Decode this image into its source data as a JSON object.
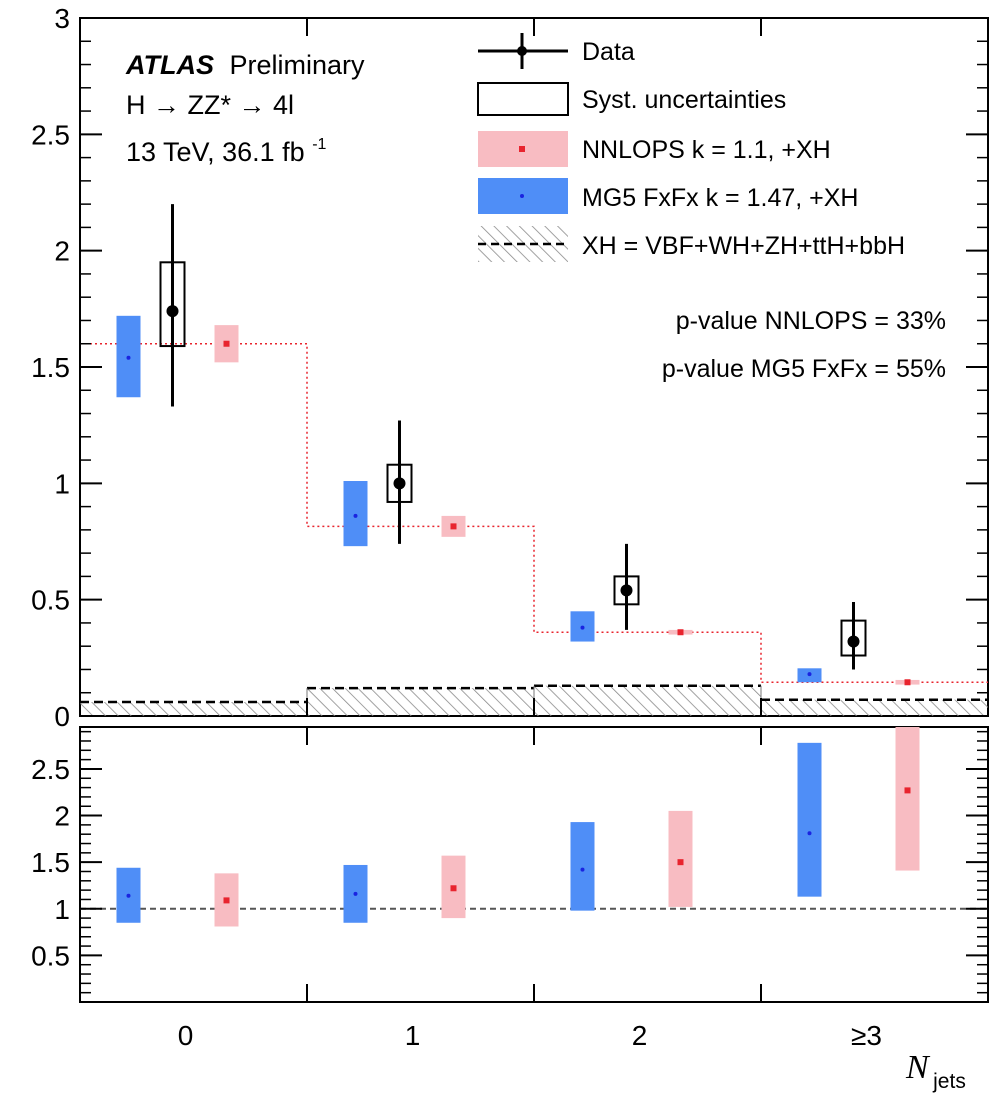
{
  "header": {
    "atlas": "ATLAS",
    "status": "Preliminary",
    "process": "H → ZZ* → 4l",
    "energy": "13 TeV, 36.1 fb",
    "lumi_exp": "-1"
  },
  "legend": {
    "data": "Data",
    "syst": "Syst. uncertainties",
    "nnlops": "NNLOPS k = 1.1, +XH",
    "mg5": "MG5 FxFx k = 1.47, +XH",
    "xh": "XH = VBF+WH+ZH+ttH+bbH"
  },
  "pvalues": {
    "nnlops": "p-value NNLOPS = 33%",
    "mg5": "p-value MG5 FxFx = 55%"
  },
  "colors": {
    "data": "#000000",
    "nnlops_fill": "#f8bcc2",
    "nnlops_marker": "#e8242e",
    "mg5_fill": "#4f8ef7",
    "mg5_marker": "#1a24e0",
    "xh_line": "#000000"
  },
  "chart_data": [
    {
      "type": "bar",
      "panel": "main",
      "categories": [
        "0",
        "1",
        "2",
        "≥3"
      ],
      "ylim": [
        0,
        3
      ],
      "y_ticks": [
        "0",
        "0.5",
        "1",
        "1.5",
        "2",
        "2.5",
        "3"
      ],
      "series": [
        {
          "name": "Data",
          "values": [
            1.74,
            1.0,
            0.54,
            0.32
          ],
          "total_err_low": [
            1.33,
            0.74,
            0.37,
            0.2
          ],
          "total_err_high": [
            2.2,
            1.27,
            0.74,
            0.49
          ],
          "syst_low": [
            1.59,
            0.92,
            0.48,
            0.26
          ],
          "syst_high": [
            1.95,
            1.08,
            0.6,
            0.41
          ]
        },
        {
          "name": "NNLOPS k = 1.1, +XH",
          "values": [
            1.6,
            0.815,
            0.36,
            0.145
          ],
          "band_low": [
            1.52,
            0.77,
            0.35,
            0.135
          ],
          "band_high": [
            1.68,
            0.86,
            0.37,
            0.155
          ]
        },
        {
          "name": "MG5 FxFx k = 1.47, +XH",
          "values": [
            1.54,
            0.86,
            0.38,
            0.18
          ],
          "band_low": [
            1.37,
            0.73,
            0.32,
            0.145
          ],
          "band_high": [
            1.72,
            1.01,
            0.45,
            0.205
          ]
        },
        {
          "name": "XH = VBF+WH+ZH+ttH+bbH",
          "values": [
            0.06,
            0.12,
            0.13,
            0.07
          ],
          "band_low": [
            0.0,
            0.0,
            0.0,
            0.0
          ],
          "band_high": [
            0.06,
            0.12,
            0.13,
            0.07
          ]
        }
      ]
    },
    {
      "type": "bar",
      "panel": "ratio",
      "categories": [
        "0",
        "1",
        "2",
        "≥3"
      ],
      "xlabel": "N jets",
      "ylim": [
        0,
        2.95
      ],
      "y_ticks": [
        "0.5",
        "1",
        "1.5",
        "2",
        "2.5"
      ],
      "reference_line": 1.0,
      "series": [
        {
          "name": "MG5 FxFx k = 1.47, +XH",
          "values": [
            1.14,
            1.16,
            1.42,
            1.81
          ],
          "band_low": [
            0.85,
            0.85,
            0.98,
            1.13
          ],
          "band_high": [
            1.44,
            1.47,
            1.93,
            2.78
          ]
        },
        {
          "name": "NNLOPS k = 1.1, +XH",
          "values": [
            1.09,
            1.22,
            1.5,
            2.27
          ],
          "band_low": [
            0.81,
            0.9,
            1.02,
            1.41
          ],
          "band_high": [
            1.38,
            1.57,
            2.05,
            2.95
          ]
        }
      ]
    }
  ]
}
